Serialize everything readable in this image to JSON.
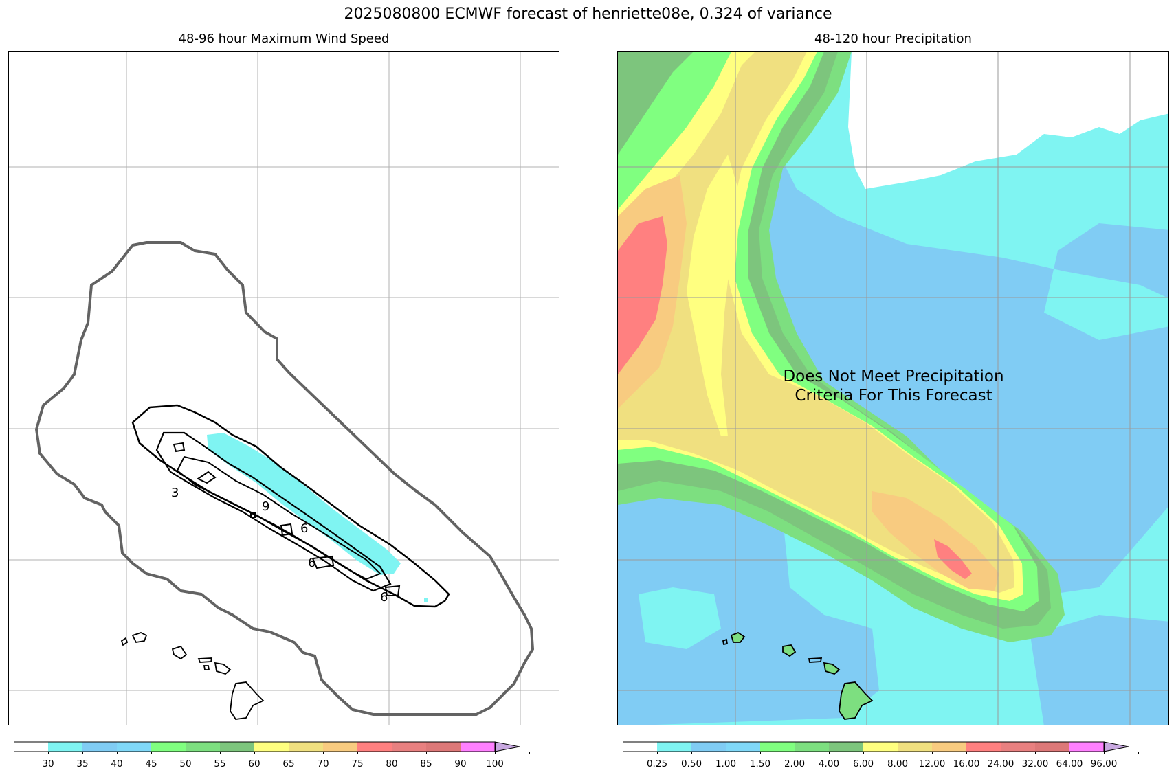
{
  "title": "2025080800 ECMWF forecast of henriette08e, 0.324 of variance",
  "left": {
    "subtitle": "48-96 hour Maximum Wind Speed",
    "contour_labels": [
      "3",
      "9",
      "6",
      "6",
      "6"
    ]
  },
  "right": {
    "subtitle": "48-120 hour Precipitation",
    "message_line1": "Does Not Meet Precipitation",
    "message_line2": "Criteria For This Forecast"
  },
  "wind_colorbar": {
    "ticks": [
      "30",
      "35",
      "40",
      "45",
      "50",
      "55",
      "60",
      "65",
      "70",
      "75",
      "80",
      "85",
      "90",
      "100"
    ],
    "colors": [
      "#ffffff",
      "#7ff4f2",
      "#80ccf4",
      "#80d8f8",
      "#80ff80",
      "#7ddf80",
      "#7dc57d",
      "#ffff80",
      "#f0e080",
      "#f8cb80",
      "#ff8080",
      "#e88080",
      "#dd7878",
      "#ff80ff",
      "#c8a8e0"
    ]
  },
  "precip_colorbar": {
    "ticks": [
      "0.25",
      "0.50",
      "1.00",
      "1.50",
      "2.00",
      "4.00",
      "6.00",
      "8.00",
      "12.00",
      "16.00",
      "24.00",
      "32.00",
      "64.00",
      "96.00"
    ],
    "colors": [
      "#ffffff",
      "#7ff4f2",
      "#80ccf4",
      "#80d8f8",
      "#80ff80",
      "#7ddf80",
      "#7dc57d",
      "#ffff80",
      "#f0e080",
      "#f8cb80",
      "#ff8080",
      "#e88080",
      "#dd7878",
      "#ff80ff",
      "#c8a8e0"
    ]
  }
}
